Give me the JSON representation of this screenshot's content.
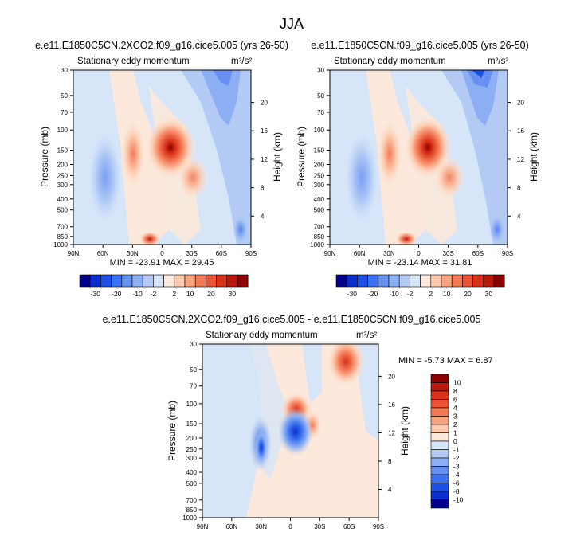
{
  "page_title": "JJA",
  "chart_data": [
    {
      "type": "heatmap",
      "title": "e.e11.E1850C5CN.2XCO2.f09_g16.cice5.005 (yrs 26-50)",
      "subtitle": "Stationary eddy momentum",
      "units": "m²/s²",
      "ylabel": "Pressure (mb)",
      "ylabel_right": "Height (km)",
      "x_ticks": [
        "90N",
        "60N",
        "30N",
        "0",
        "30S",
        "60S",
        "90S"
      ],
      "y_ticks": [
        "30",
        "50",
        "70",
        "100",
        "150",
        "200",
        "250",
        "300",
        "400",
        "500",
        "700",
        "850",
        "1000"
      ],
      "height_ticks": [
        "20",
        "16",
        "12",
        "8",
        "4"
      ],
      "stats": "MIN = -23.91   MAX = 29.45",
      "min": -23.91,
      "max": 29.45,
      "features": [
        {
          "lat": -8,
          "p": 150,
          "value": 29,
          "kind": "max"
        },
        {
          "lat": 31,
          "p": 180,
          "value": 8,
          "kind": "positive"
        },
        {
          "lat": 17,
          "p": 970,
          "value": 8,
          "kind": "positive"
        },
        {
          "lat": -55,
          "p": 40,
          "value": -18,
          "kind": "negative"
        },
        {
          "lat": 48,
          "p": 250,
          "value": -4,
          "kind": "negative"
        }
      ]
    },
    {
      "type": "heatmap",
      "title": "e.e11.E1850C5CN.f09_g16.cice5.005 (yrs 26-50)",
      "subtitle": "Stationary eddy momentum",
      "units": "m²/s²",
      "ylabel": "Pressure (mb)",
      "ylabel_right": "Height (km)",
      "x_ticks": [
        "90N",
        "60N",
        "30N",
        "0",
        "30S",
        "60S",
        "90S"
      ],
      "y_ticks": [
        "30",
        "50",
        "70",
        "100",
        "150",
        "200",
        "250",
        "300",
        "400",
        "500",
        "700",
        "850",
        "1000"
      ],
      "height_ticks": [
        "20",
        "16",
        "12",
        "8",
        "4"
      ],
      "stats": "MIN = -23.14   MAX = 31.81",
      "min": -23.14,
      "max": 31.81,
      "features": [
        {
          "lat": -6,
          "p": 150,
          "value": 31,
          "kind": "max"
        },
        {
          "lat": 31,
          "p": 180,
          "value": 9,
          "kind": "positive"
        },
        {
          "lat": 17,
          "p": 970,
          "value": 8,
          "kind": "positive"
        },
        {
          "lat": -60,
          "p": 35,
          "value": -22,
          "kind": "negative"
        },
        {
          "lat": 48,
          "p": 250,
          "value": -4,
          "kind": "negative"
        }
      ]
    },
    {
      "type": "heatmap",
      "title": "e.e11.E1850C5CN.2XCO2.f09_g16.cice5.005 - e.e11.E1850C5CN.f09_g16.cice5.005",
      "subtitle": "Stationary eddy momentum",
      "units": "m²/s²",
      "ylabel": "Pressure (mb)",
      "ylabel_right": "Height (km)",
      "x_ticks": [
        "90N",
        "60N",
        "30N",
        "0",
        "30S",
        "60S",
        "90S"
      ],
      "y_ticks": [
        "30",
        "50",
        "70",
        "100",
        "150",
        "200",
        "250",
        "300",
        "400",
        "500",
        "700",
        "850",
        "1000"
      ],
      "height_ticks": [
        "20",
        "16",
        "12",
        "8",
        "4"
      ],
      "stats": "MIN =  -5.73   MAX =  6.87",
      "min": -5.73,
      "max": 6.87,
      "features": [
        {
          "lat": -60,
          "p": 35,
          "value": 6.9,
          "kind": "max"
        },
        {
          "lat": 0,
          "p": 100,
          "value": 5,
          "kind": "positive"
        },
        {
          "lat": -20,
          "p": 140,
          "value": 2,
          "kind": "positive"
        },
        {
          "lat": 0,
          "p": 180,
          "value": -5.7,
          "kind": "min"
        },
        {
          "lat": 32,
          "p": 200,
          "value": -3,
          "kind": "negative"
        }
      ]
    }
  ],
  "colorbar_shared": {
    "tick_labels": [
      "-30",
      "-20",
      "-10",
      "-2",
      "2",
      "10",
      "20",
      "30"
    ],
    "colors": [
      "#00008b",
      "#0a2fcc",
      "#1d50e6",
      "#3b71f0",
      "#6790f0",
      "#8caef2",
      "#b3cbf4",
      "#d6e5f8",
      "#fce9db",
      "#fcc9ad",
      "#f9a37f",
      "#f47a56",
      "#ec5333",
      "#d8321a",
      "#b8190c",
      "#8b0000"
    ]
  },
  "colorbar_diff": {
    "tick_labels": [
      "10",
      "8",
      "6",
      "4",
      "3",
      "2",
      "1",
      "0",
      "-1",
      "-2",
      "-3",
      "-4",
      "-6",
      "-8",
      "-10"
    ],
    "colors": [
      "#8b0000",
      "#b8190c",
      "#d8321a",
      "#ec5333",
      "#f47a56",
      "#f9a37f",
      "#fcc9ad",
      "#fce9db",
      "#d6e5f8",
      "#b3cbf4",
      "#8caef2",
      "#6790f0",
      "#3b71f0",
      "#1d50e6",
      "#0a2fcc",
      "#00008b"
    ]
  }
}
